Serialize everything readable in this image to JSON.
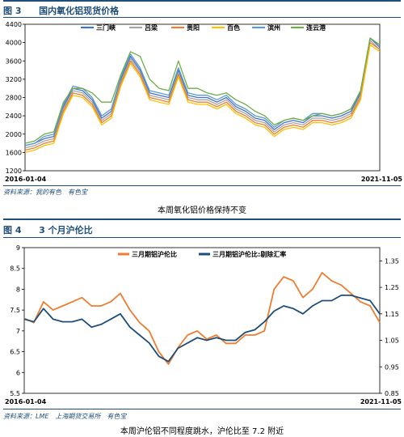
{
  "fig3": {
    "number": "图 3",
    "title": "国内氧化铝现货价格",
    "source": "资料来源：我的有色　有色宝",
    "caption": "本周氧化铝价格保持不变"
  },
  "fig4": {
    "number": "图 4",
    "title": "3 个月沪伦比",
    "source": "资料来源：LME　上海期货交易所　有色宝",
    "caption": "本周沪伦铝不同程度跳水，沪伦比至 7.2 附近"
  },
  "chart_data": [
    {
      "type": "line",
      "title": "国内氧化铝现货价格",
      "x_start": "2016-01-04",
      "x_end": "2021-11-05",
      "ylim": [
        1200,
        4400
      ],
      "yticks": [
        1200,
        1600,
        2000,
        2400,
        2800,
        3200,
        3600,
        4000,
        4400
      ],
      "xtick_labels": [
        "2016-01-04",
        "2021-11-05"
      ],
      "legend_position": "top",
      "x": [
        "2016-01",
        "2016-03",
        "2016-05",
        "2016-07",
        "2016-09",
        "2016-11",
        "2017-01",
        "2017-03",
        "2017-05",
        "2017-07",
        "2017-09",
        "2017-10",
        "2017-12",
        "2018-02",
        "2018-04",
        "2018-06",
        "2018-08",
        "2018-10",
        "2018-12",
        "2019-02",
        "2019-04",
        "2019-06",
        "2019-08",
        "2019-10",
        "2019-12",
        "2020-02",
        "2020-04",
        "2020-06",
        "2020-08",
        "2020-10",
        "2020-12",
        "2021-02",
        "2021-04",
        "2021-06",
        "2021-08",
        "2021-09",
        "2021-10",
        "2021-11"
      ],
      "series": [
        {
          "name": "三门峡",
          "color": "#4472c4",
          "values": [
            1750,
            1800,
            1900,
            1950,
            2600,
            3000,
            2950,
            2750,
            2350,
            2500,
            3200,
            3700,
            3400,
            2900,
            2850,
            2800,
            3400,
            2850,
            2800,
            2800,
            2700,
            2800,
            2600,
            2500,
            2350,
            2300,
            2100,
            2250,
            2300,
            2250,
            2400,
            2400,
            2350,
            2400,
            2500,
            2900,
            4100,
            3900
          ]
        },
        {
          "name": "吕梁",
          "color": "#a5a5a5",
          "values": [
            1700,
            1750,
            1850,
            1900,
            2550,
            2950,
            2900,
            2700,
            2300,
            2450,
            3150,
            3650,
            3350,
            2850,
            2800,
            2750,
            3350,
            2800,
            2750,
            2750,
            2650,
            2750,
            2550,
            2450,
            2300,
            2250,
            2050,
            2200,
            2250,
            2200,
            2350,
            2350,
            2300,
            2350,
            2450,
            2850,
            4050,
            3850
          ]
        },
        {
          "name": "贵阳",
          "color": "#ed7d31",
          "values": [
            1650,
            1700,
            1800,
            1850,
            2500,
            2900,
            2850,
            2650,
            2250,
            2400,
            3100,
            3600,
            3300,
            2800,
            2750,
            2700,
            3300,
            2750,
            2700,
            2700,
            2600,
            2700,
            2500,
            2400,
            2250,
            2200,
            2000,
            2150,
            2200,
            2150,
            2300,
            2300,
            2250,
            2300,
            2400,
            2800,
            4000,
            3850
          ]
        },
        {
          "name": "百色",
          "color": "#ffc000",
          "values": [
            1600,
            1650,
            1750,
            1800,
            2450,
            2850,
            2800,
            2600,
            2200,
            2350,
            3050,
            3550,
            3250,
            2750,
            2700,
            2650,
            3250,
            2700,
            2650,
            2650,
            2550,
            2650,
            2450,
            2350,
            2200,
            2150,
            1950,
            2100,
            2150,
            2100,
            2250,
            2250,
            2200,
            2250,
            2350,
            2750,
            3950,
            3800
          ]
        },
        {
          "name": "滨州",
          "color": "#5b9bd5",
          "values": [
            1750,
            1800,
            1950,
            2000,
            2650,
            3050,
            3000,
            2800,
            2400,
            2550,
            3250,
            3750,
            3450,
            2950,
            2900,
            2850,
            3450,
            2900,
            2850,
            2850,
            2750,
            2850,
            2650,
            2550,
            2400,
            2350,
            2150,
            2300,
            2350,
            2300,
            2450,
            2450,
            2400,
            2450,
            2550,
            2950,
            4100,
            3950
          ]
        },
        {
          "name": "连云港",
          "color": "#70ad47",
          "values": [
            1800,
            1850,
            2000,
            2050,
            2700,
            3000,
            3000,
            2900,
            2700,
            2700,
            3300,
            3800,
            3700,
            3200,
            3000,
            2950,
            3600,
            3000,
            3000,
            2900,
            2850,
            2900,
            2750,
            2650,
            2500,
            2400,
            2200,
            2300,
            2350,
            2300,
            2400,
            2450,
            2400,
            2450,
            2550,
            2950,
            4100,
            3950
          ]
        }
      ]
    },
    {
      "type": "line",
      "title": "3 个月沪伦比",
      "x_start": "2016-01-04",
      "x_end": "2021-11-05",
      "ylim": [
        5.5,
        9
      ],
      "yticks": [
        5.5,
        6,
        6.5,
        7,
        7.5,
        8,
        8.5,
        9
      ],
      "y2lim": [
        0.85,
        1.4
      ],
      "y2ticks": [
        0.85,
        0.95,
        1.05,
        1.15,
        1.25,
        1.35
      ],
      "xtick_labels": [
        "2016-01-04",
        "2021-11-05"
      ],
      "legend_position": "top",
      "x": [
        "2016-01",
        "2016-03",
        "2016-05",
        "2016-07",
        "2016-09",
        "2016-11",
        "2017-01",
        "2017-03",
        "2017-05",
        "2017-07",
        "2017-09",
        "2017-10",
        "2017-12",
        "2018-02",
        "2018-04",
        "2018-06",
        "2018-08",
        "2018-10",
        "2018-12",
        "2019-02",
        "2019-04",
        "2019-06",
        "2019-08",
        "2019-10",
        "2019-12",
        "2020-02",
        "2020-04",
        "2020-06",
        "2020-08",
        "2020-10",
        "2020-12",
        "2021-02",
        "2021-04",
        "2021-06",
        "2021-08",
        "2021-09",
        "2021-10",
        "2021-11"
      ],
      "series": [
        {
          "name": "三月期铝沪伦比",
          "color": "#ed7d31",
          "axis": "left",
          "values": [
            7.3,
            7.2,
            7.7,
            7.5,
            7.6,
            7.7,
            7.8,
            7.6,
            7.6,
            7.7,
            7.9,
            7.5,
            7.2,
            7.0,
            6.5,
            6.2,
            6.6,
            6.9,
            7.0,
            6.8,
            6.9,
            6.7,
            6.7,
            6.9,
            6.9,
            7.0,
            8.0,
            8.3,
            8.2,
            7.8,
            8.0,
            8.4,
            8.2,
            8.1,
            7.9,
            7.7,
            7.6,
            7.2
          ]
        },
        {
          "name": "三月期铝沪伦比:剔除汇率",
          "color": "#1f4e79",
          "axis": "right",
          "values": [
            1.13,
            1.12,
            1.17,
            1.13,
            1.12,
            1.12,
            1.13,
            1.1,
            1.11,
            1.13,
            1.15,
            1.1,
            1.07,
            1.04,
            0.99,
            0.97,
            1.02,
            1.04,
            1.06,
            1.05,
            1.06,
            1.05,
            1.05,
            1.08,
            1.09,
            1.12,
            1.16,
            1.18,
            1.17,
            1.15,
            1.18,
            1.2,
            1.2,
            1.22,
            1.22,
            1.21,
            1.2,
            1.15
          ]
        }
      ]
    }
  ]
}
